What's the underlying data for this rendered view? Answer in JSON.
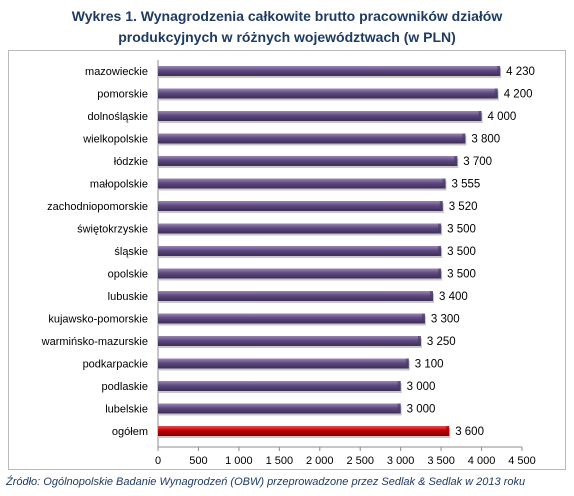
{
  "title": {
    "line1": "Wykres 1. Wynagrodzenia całkowite brutto pracowników działów",
    "line2": "produkcyjnych w różnych województwach (w PLN)"
  },
  "source": "Źródło: Ogólnopolskie Badanie Wynagrodzeń (OBW) przeprowadzone przez Sedlak & Sedlak w 2013 roku",
  "chart_data": {
    "type": "bar",
    "orientation": "horizontal",
    "categories": [
      "mazowieckie",
      "pomorskie",
      "dolnośląskie",
      "wielkopolskie",
      "łódzkie",
      "małopolskie",
      "zachodniopomorskie",
      "świętokrzyskie",
      "śląskie",
      "opolskie",
      "lubuskie",
      "kujawsko-pomorskie",
      "warmińsko-mazurskie",
      "podkarpackie",
      "podlaskie",
      "lubelskie",
      "ogółem"
    ],
    "values": [
      4230,
      4200,
      4000,
      3800,
      3700,
      3555,
      3520,
      3500,
      3500,
      3500,
      3400,
      3300,
      3250,
      3100,
      3000,
      3000,
      3600
    ],
    "value_labels": [
      "4 230",
      "4 200",
      "4 000",
      "3 800",
      "3 700",
      "3 555",
      "3 520",
      "3 500",
      "3 500",
      "3 500",
      "3 400",
      "3 300",
      "3 250",
      "3 100",
      "3 000",
      "3 000",
      "3 600"
    ],
    "xlim": [
      0,
      4500
    ],
    "x_ticks": [
      0,
      500,
      1000,
      1500,
      2000,
      2500,
      3000,
      3500,
      4000,
      4500
    ],
    "x_tick_labels": [
      "0",
      "500",
      "1 000",
      "1 500",
      "2 000",
      "2 500",
      "3 000",
      "3 500",
      "4 000",
      "4 500"
    ],
    "colors": {
      "bar": "#5e4a7e",
      "highlight": "#c00000"
    },
    "highlight_category": "ogółem",
    "grid": false,
    "legend": "none"
  }
}
